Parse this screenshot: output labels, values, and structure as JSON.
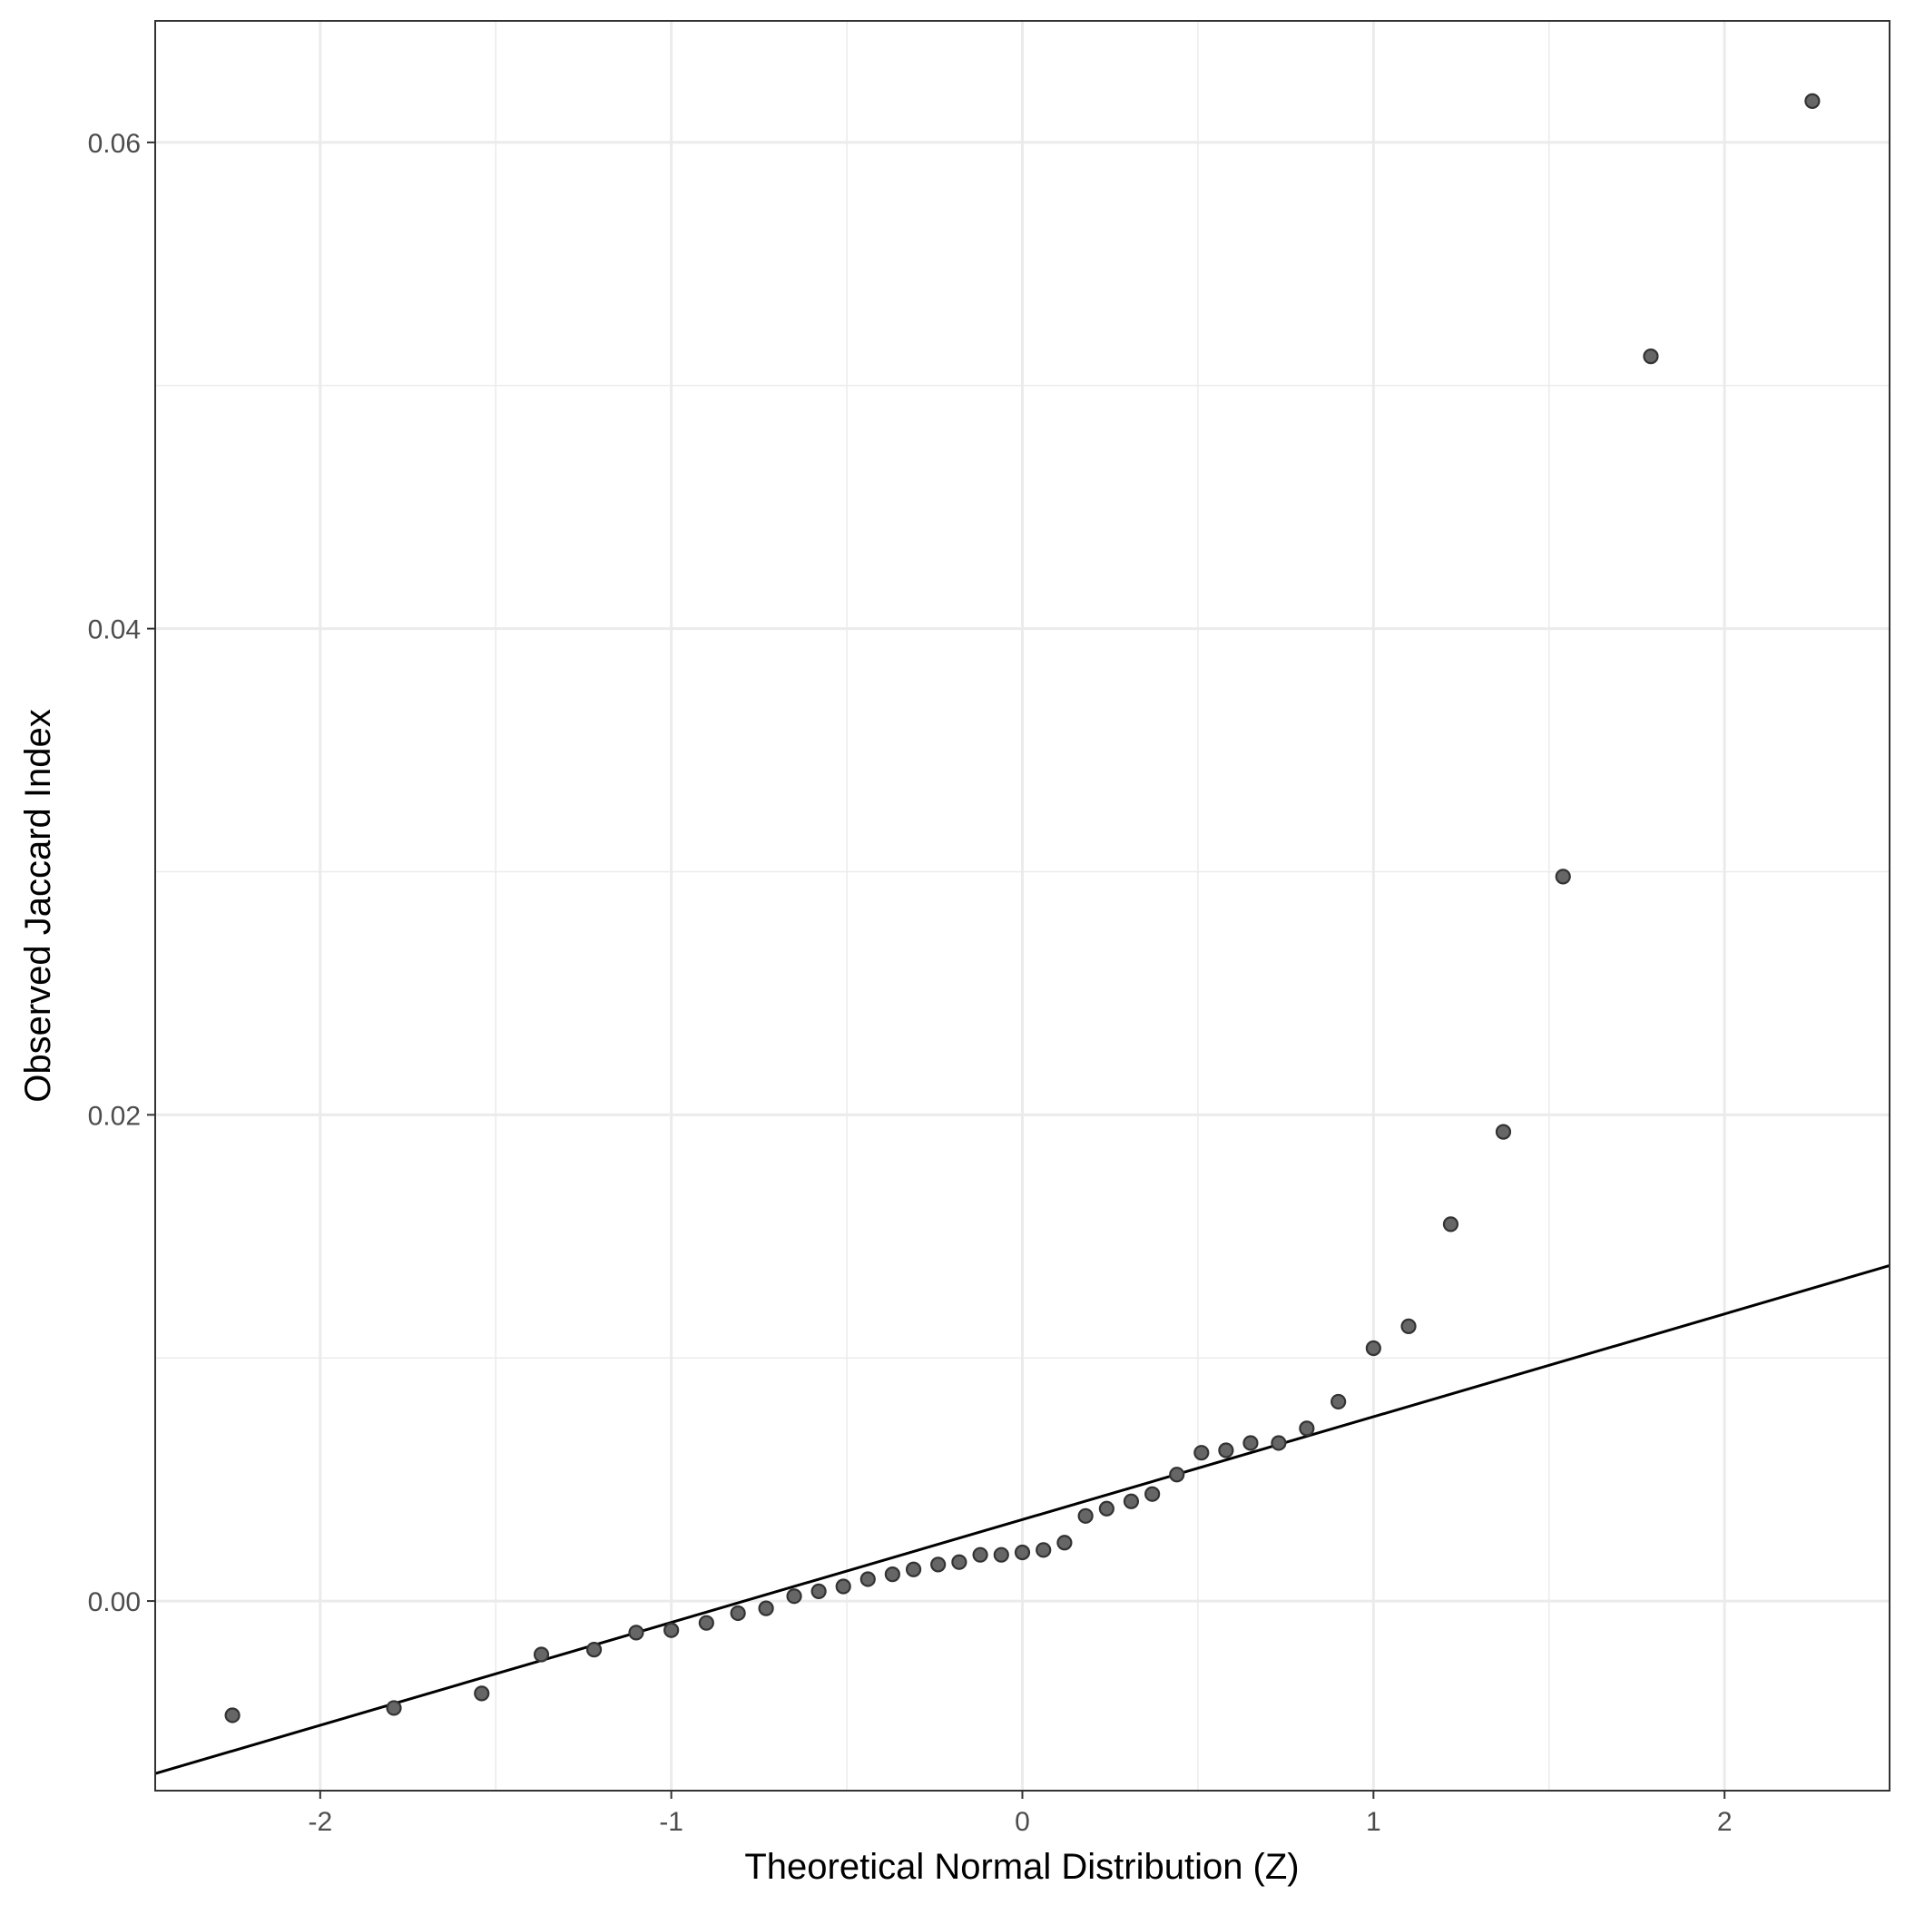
{
  "chart_data": {
    "type": "scatter",
    "title": "",
    "xlabel": "Theoretical Normal Distribution (Z)",
    "ylabel": "Observed Jaccard Index",
    "xlim": [
      -2.47,
      2.47
    ],
    "ylim": [
      -0.0078,
      0.065
    ],
    "x_ticks": [
      -2,
      -1,
      0,
      1,
      2
    ],
    "x_tick_labels": [
      "-2",
      "-1",
      "0",
      "1",
      "2"
    ],
    "y_ticks": [
      0.0,
      0.02,
      0.04,
      0.06
    ],
    "y_tick_labels": [
      "0.00",
      "0.02",
      "0.04",
      "0.06"
    ],
    "grid": true,
    "reference_line": {
      "intercept": 0.00335,
      "slope": 0.00423,
      "color": "#000000"
    },
    "point_color": "#666666",
    "point_stroke": "#333333",
    "points": [
      {
        "x": -2.25,
        "y": -0.0047
      },
      {
        "x": -1.79,
        "y": -0.0044
      },
      {
        "x": -1.54,
        "y": -0.0038
      },
      {
        "x": -1.37,
        "y": -0.0022
      },
      {
        "x": -1.22,
        "y": -0.002
      },
      {
        "x": -1.1,
        "y": -0.0013
      },
      {
        "x": -1.0,
        "y": -0.0012
      },
      {
        "x": -0.9,
        "y": -0.0009
      },
      {
        "x": -0.81,
        "y": -0.0005
      },
      {
        "x": -0.73,
        "y": -0.0003
      },
      {
        "x": -0.65,
        "y": 0.0002
      },
      {
        "x": -0.58,
        "y": 0.0004
      },
      {
        "x": -0.51,
        "y": 0.0006
      },
      {
        "x": -0.44,
        "y": 0.0009
      },
      {
        "x": -0.37,
        "y": 0.0011
      },
      {
        "x": -0.31,
        "y": 0.0013
      },
      {
        "x": -0.24,
        "y": 0.0015
      },
      {
        "x": -0.18,
        "y": 0.0016
      },
      {
        "x": -0.12,
        "y": 0.0019
      },
      {
        "x": -0.06,
        "y": 0.0019
      },
      {
        "x": 0.0,
        "y": 0.002
      },
      {
        "x": 0.06,
        "y": 0.0021
      },
      {
        "x": 0.12,
        "y": 0.0024
      },
      {
        "x": 0.18,
        "y": 0.0035
      },
      {
        "x": 0.24,
        "y": 0.0038
      },
      {
        "x": 0.31,
        "y": 0.0041
      },
      {
        "x": 0.37,
        "y": 0.0044
      },
      {
        "x": 0.44,
        "y": 0.0052
      },
      {
        "x": 0.51,
        "y": 0.0061
      },
      {
        "x": 0.58,
        "y": 0.0062
      },
      {
        "x": 0.65,
        "y": 0.0065
      },
      {
        "x": 0.73,
        "y": 0.0065
      },
      {
        "x": 0.81,
        "y": 0.0071
      },
      {
        "x": 0.9,
        "y": 0.0082
      },
      {
        "x": 1.0,
        "y": 0.0104
      },
      {
        "x": 1.1,
        "y": 0.0113
      },
      {
        "x": 1.22,
        "y": 0.0155
      },
      {
        "x": 1.37,
        "y": 0.0193
      },
      {
        "x": 1.54,
        "y": 0.0298
      },
      {
        "x": 1.79,
        "y": 0.0512
      },
      {
        "x": 2.25,
        "y": 0.0617
      }
    ]
  }
}
